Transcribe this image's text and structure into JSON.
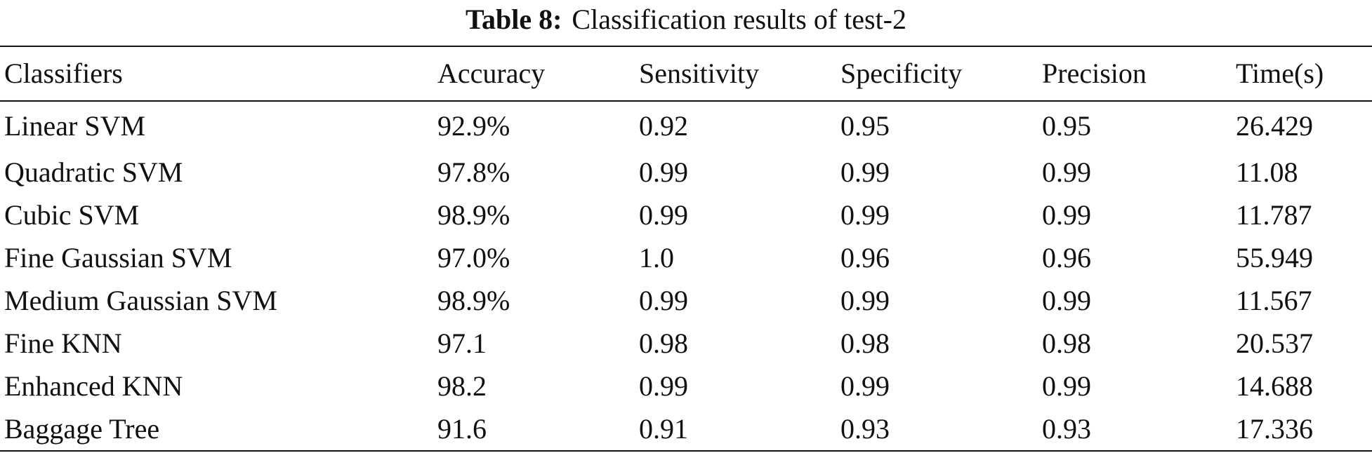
{
  "caption": {
    "label": "Table 8:",
    "text": "Classification results of test-2"
  },
  "table": {
    "headers": [
      "Classifiers",
      "Accuracy",
      "Sensitivity",
      "Specificity",
      "Precision",
      "Time(s)"
    ],
    "rows": [
      [
        "Linear SVM",
        "92.9%",
        "0.92",
        "0.95",
        "0.95",
        "26.429"
      ],
      [
        "Quadratic SVM",
        "97.8%",
        "0.99",
        "0.99",
        "0.99",
        "11.08"
      ],
      [
        "Cubic SVM",
        "98.9%",
        "0.99",
        "0.99",
        "0.99",
        "11.787"
      ],
      [
        "Fine Gaussian SVM",
        "97.0%",
        "1.0",
        "0.96",
        "0.96",
        "55.949"
      ],
      [
        "Medium Gaussian SVM",
        "98.9%",
        "0.99",
        "0.99",
        "0.99",
        "11.567"
      ],
      [
        "Fine KNN",
        "97.1",
        "0.98",
        "0.98",
        "0.98",
        "20.537"
      ],
      [
        "Enhanced KNN",
        "98.2",
        "0.99",
        "0.99",
        "0.99",
        "14.688"
      ],
      [
        "Baggage Tree",
        "91.6",
        "0.91",
        "0.93",
        "0.93",
        "17.336"
      ]
    ]
  }
}
